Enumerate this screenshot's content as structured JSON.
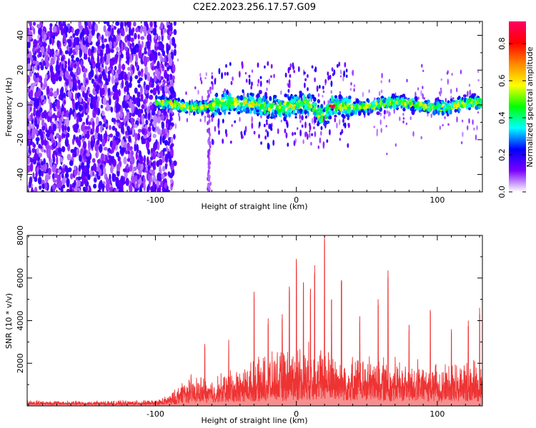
{
  "figure_title": "C2E2.2023.256.17.57.G09",
  "chart_data": [
    {
      "type": "heatmap",
      "xlabel": "Height of straight line (km)",
      "ylabel": "Frequency (Hz)",
      "xlim": [
        -191,
        132
      ],
      "ylim": [
        -50,
        48
      ],
      "x_ticks": [
        -100,
        0,
        100
      ],
      "x_tick_labels": [
        "-100",
        "0",
        "100"
      ],
      "y_ticks": [
        -40,
        -20,
        0,
        20,
        40
      ],
      "y_tick_labels": [
        "-40",
        "-20",
        "0",
        "20",
        "40"
      ],
      "colorbar": {
        "label": "Normalized spectral amplitude",
        "range": [
          0,
          0.92
        ],
        "ticks": [
          0,
          0.2,
          0.4,
          0.6,
          0.8
        ],
        "tick_labels": [
          "0.0",
          "0.2",
          "0.4",
          "0.6",
          "0.8"
        ],
        "colormap": [
          "#ffffff",
          "#7a00ff",
          "#0000ff",
          "#00ffff",
          "#00ff00",
          "#ffff00",
          "#ff8800",
          "#ff0000",
          "#ff0066"
        ]
      },
      "description": {
        "noise_region_km": [
          -191,
          -90
        ],
        "signal_band_center_hz": 0,
        "signal_band_halfwidth_hz": 4,
        "signal_start_km": -100,
        "dip_center_km": 20,
        "dip_depth_hz": -8,
        "peak_amplitude": 0.92
      }
    },
    {
      "type": "line",
      "xlabel": "Height of straight line (km)",
      "ylabel": "SNR (10 * v/v)",
      "xlim": [
        -191,
        132
      ],
      "ylim": [
        0,
        8000
      ],
      "x_ticks": [
        -100,
        0,
        100
      ],
      "x_tick_labels": [
        "-100",
        "0",
        "100"
      ],
      "y_ticks": [
        2000,
        4000,
        6000,
        8000
      ],
      "y_tick_labels": [
        "2000",
        "4000",
        "6000",
        "8000"
      ],
      "series_color": "#ee3333",
      "envelope": {
        "x": [
          -191,
          -150,
          -100,
          -92,
          -85,
          -80,
          -70,
          -60,
          -50,
          -40,
          -30,
          -20,
          -10,
          0,
          10,
          20,
          30,
          40,
          50,
          60,
          70,
          80,
          90,
          100,
          110,
          120,
          132
        ],
        "baseline": [
          150,
          130,
          130,
          140,
          250,
          450,
          500,
          450,
          550,
          600,
          650,
          700,
          750,
          800,
          800,
          750,
          700,
          700,
          700,
          700,
          700,
          650,
          650,
          650,
          650,
          650,
          650
        ],
        "typical_max": [
          300,
          250,
          300,
          500,
          900,
          1600,
          1500,
          1400,
          1800,
          2000,
          2300,
          2600,
          2800,
          3200,
          3100,
          3000,
          2800,
          2600,
          2500,
          2600,
          2400,
          2300,
          2200,
          2200,
          2300,
          2300,
          2500
        ]
      },
      "spikes": [
        {
          "x": -65,
          "y": 2900
        },
        {
          "x": -48,
          "y": 3100
        },
        {
          "x": -30,
          "y": 5350
        },
        {
          "x": -20,
          "y": 4100
        },
        {
          "x": -10,
          "y": 4300
        },
        {
          "x": -5,
          "y": 5600
        },
        {
          "x": 0,
          "y": 6900
        },
        {
          "x": 5,
          "y": 5800
        },
        {
          "x": 10,
          "y": 5500
        },
        {
          "x": 13,
          "y": 6600
        },
        {
          "x": 20,
          "y": 8000
        },
        {
          "x": 25,
          "y": 5000
        },
        {
          "x": 32,
          "y": 5900
        },
        {
          "x": 45,
          "y": 4200
        },
        {
          "x": 58,
          "y": 5000
        },
        {
          "x": 65,
          "y": 6350
        },
        {
          "x": 80,
          "y": 3800
        },
        {
          "x": 95,
          "y": 4500
        },
        {
          "x": 110,
          "y": 3600
        },
        {
          "x": 122,
          "y": 4000
        },
        {
          "x": 130,
          "y": 4600
        }
      ]
    }
  ]
}
